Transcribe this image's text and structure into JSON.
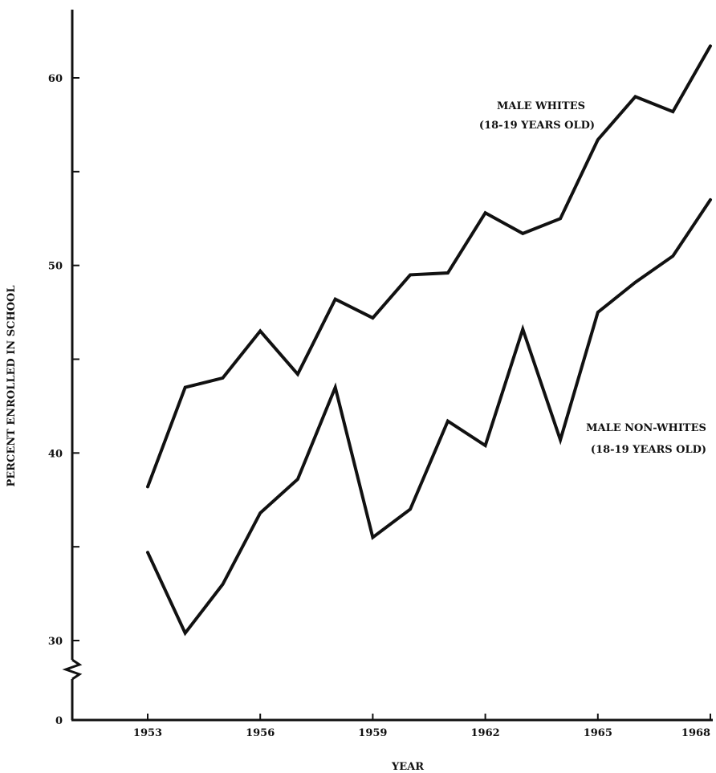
{
  "chart_data": {
    "type": "line",
    "title": "",
    "xlabel": "YEAR",
    "ylabel": "PERCENT ENROLLED IN SCHOOL",
    "x": [
      1953,
      1954,
      1955,
      1956,
      1957,
      1958,
      1959,
      1960,
      1961,
      1962,
      1963,
      1964,
      1965,
      1966,
      1967,
      1968
    ],
    "x_ticks": [
      "1953",
      "1956",
      "1959",
      "1962",
      "1965",
      "1968"
    ],
    "y_ticks": [
      "0",
      "30",
      "40",
      "50",
      "60"
    ],
    "ylim": [
      30,
      63
    ],
    "y_axis_break": "between 0 and 30",
    "grid": false,
    "series": [
      {
        "name": "MALE WHITES (18-19 YEARS OLD)",
        "label_lines": [
          "MALE WHITES",
          "(18-19 YEARS OLD)"
        ],
        "values": [
          38.2,
          43.5,
          44.0,
          46.5,
          44.2,
          48.2,
          47.2,
          49.5,
          49.6,
          52.8,
          51.7,
          52.5,
          56.7,
          59.0,
          58.2,
          61.7
        ]
      },
      {
        "name": "MALE NON-WHITES (18-19 YEARS OLD)",
        "label_lines": [
          "MALE NON-WHITES",
          "(18-19 YEARS OLD)"
        ],
        "values": [
          34.7,
          30.4,
          33.0,
          36.8,
          38.6,
          43.5,
          35.5,
          37.0,
          41.7,
          40.4,
          46.6,
          40.7,
          47.5,
          49.1,
          50.5,
          53.5
        ]
      }
    ]
  }
}
